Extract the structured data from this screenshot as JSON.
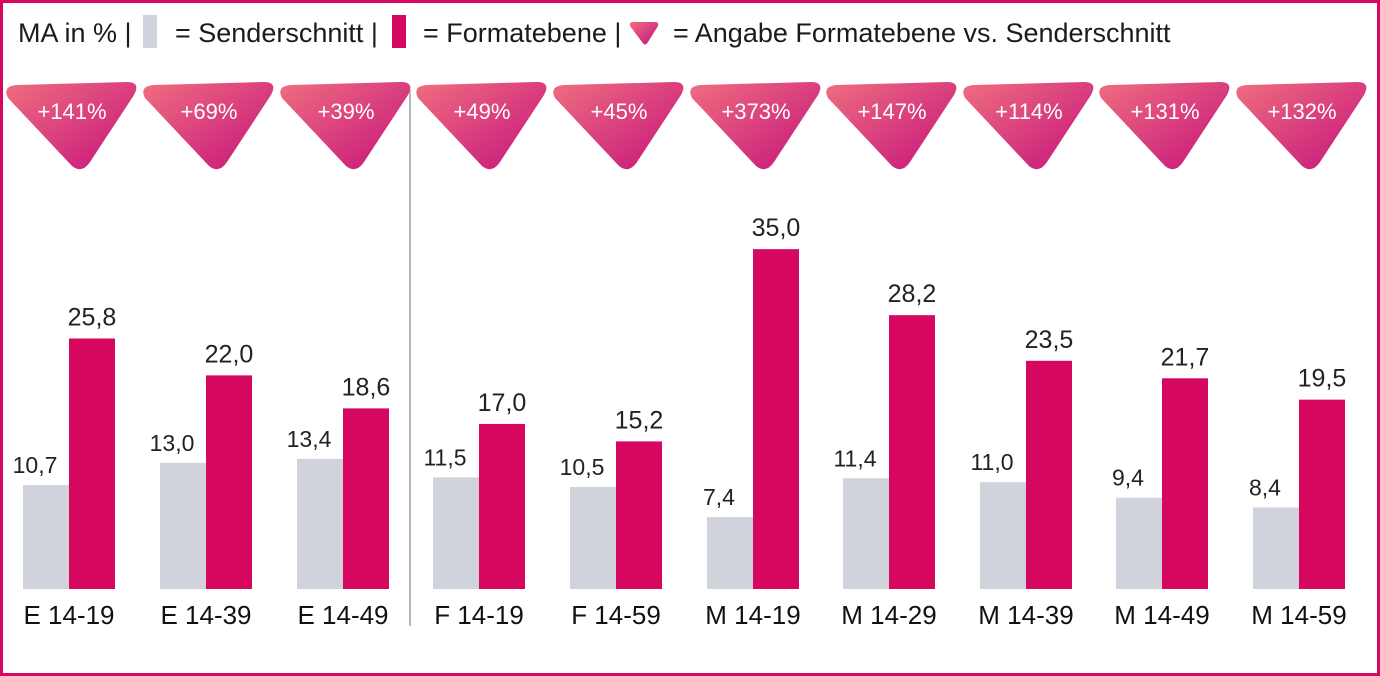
{
  "legend": {
    "prefix": "MA in % |",
    "items": [
      {
        "label": "= Senderschnitt |",
        "swatch": "grey"
      },
      {
        "label": "= Formatebene |",
        "swatch": "magenta"
      },
      {
        "label": "= Angabe Formatebene vs. Senderschnitt",
        "swatch": "badge"
      }
    ]
  },
  "colors": {
    "senderschnitt": "#d0d3db",
    "formatebene": "#d5075f",
    "badge_start": "#ef6e7f",
    "badge_end": "#c5127c",
    "frame": "#d5075f",
    "divider": "#b8b8b8"
  },
  "chart_data": {
    "type": "bar",
    "categories": [
      "E 14-19",
      "E 14-39",
      "E 14-49",
      "F 14-19",
      "F 14-59",
      "M 14-19",
      "M 14-29",
      "M 14-39",
      "M 14-49",
      "M 14-59"
    ],
    "series": [
      {
        "name": "Senderschnitt",
        "values": [
          10.7,
          13.0,
          13.4,
          11.5,
          10.5,
          7.4,
          11.4,
          11.0,
          9.4,
          8.4
        ],
        "labels": [
          "10,7",
          "13,0",
          "13,4",
          "11,5",
          "10,5",
          "7,4",
          "11,4",
          "11,0",
          "9,4",
          "8,4"
        ]
      },
      {
        "name": "Formatebene",
        "values": [
          25.8,
          22.0,
          18.6,
          17.0,
          15.2,
          35.0,
          28.2,
          23.5,
          21.7,
          19.5
        ],
        "labels": [
          "25,8",
          "22,0",
          "18,6",
          "17,0",
          "15,2",
          "35,0",
          "28,2",
          "23,5",
          "21,7",
          "19,5"
        ]
      }
    ],
    "annotations": [
      "+141%",
      "+69%",
      "+39%",
      "+49%",
      "+45%",
      "+373%",
      "+147%",
      "+114%",
      "+131%",
      "+132%"
    ],
    "ylim": [
      0,
      35
    ]
  }
}
